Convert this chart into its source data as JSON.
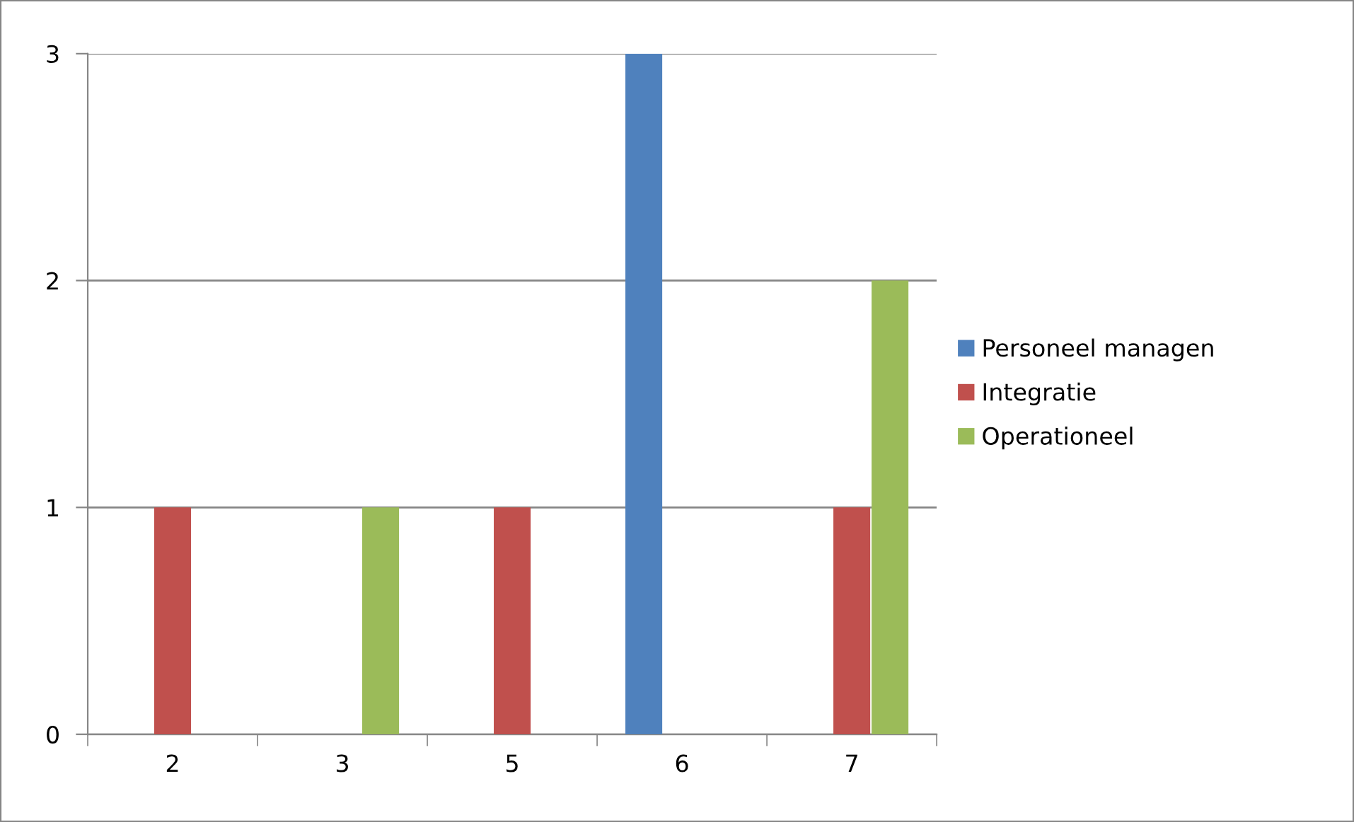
{
  "chart_data": {
    "type": "bar",
    "categories": [
      "2",
      "3",
      "5",
      "6",
      "7"
    ],
    "series": [
      {
        "name": "Personeel managen",
        "color": "#4f81bd",
        "values": [
          null,
          null,
          null,
          3,
          null
        ]
      },
      {
        "name": "Integratie",
        "color": "#c0504d",
        "values": [
          1,
          null,
          1,
          null,
          1
        ]
      },
      {
        "name": "Operationeel",
        "color": "#9bbb59",
        "values": [
          null,
          1,
          null,
          null,
          2
        ]
      }
    ],
    "ylim": [
      0,
      3
    ],
    "yticks": [
      0,
      1,
      2,
      3
    ],
    "grid": "y",
    "legend": "right"
  }
}
